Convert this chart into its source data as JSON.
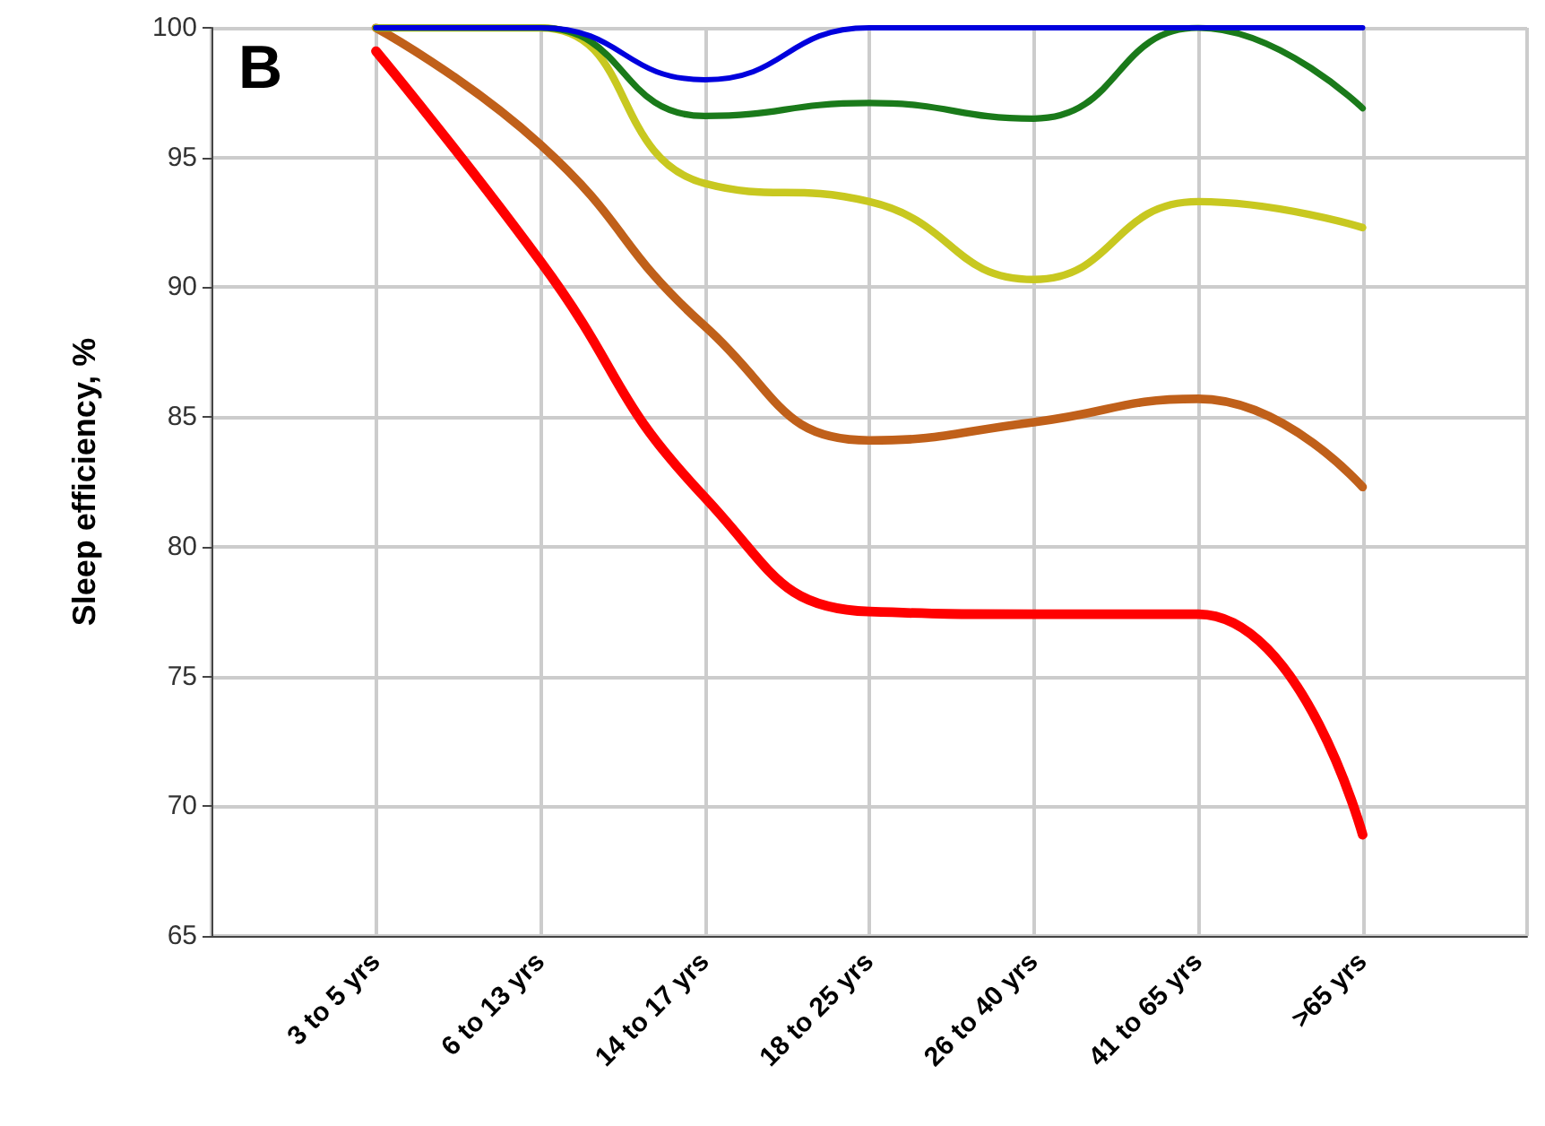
{
  "chart_data": {
    "type": "line",
    "title": "B",
    "ylabel": "Sleep efficiency, %",
    "categories": [
      "3 to 5 yrs",
      "6 to 13 yrs",
      "14 to 17 yrs",
      "18 to 25 yrs",
      "26 to 40 yrs",
      "41 to 65 yrs",
      ">65 yrs"
    ],
    "series": [
      {
        "color": "#ff0000",
        "values": [
          99.1,
          91,
          81.9,
          77.5,
          77.4,
          77.4,
          68.9
        ]
      },
      {
        "color": "#c0601a",
        "values": [
          100,
          95.5,
          88.5,
          84.1,
          84.8,
          85.7,
          82.3
        ]
      },
      {
        "color": "#c8c820",
        "values": [
          100,
          100,
          94,
          93.3,
          90.3,
          93.3,
          92.3
        ]
      },
      {
        "color": "#1a7a1a",
        "values": [
          100,
          100,
          96.6,
          97.1,
          96.5,
          100,
          96.9
        ]
      },
      {
        "color": "#0000dd",
        "values": [
          100,
          100,
          98,
          100,
          100,
          100,
          100
        ]
      }
    ],
    "ylim": [
      65,
      100
    ],
    "yticks": [
      65,
      70,
      75,
      80,
      85,
      90,
      95,
      100
    ],
    "grid": true,
    "marker": "none",
    "line_style": "solid"
  }
}
